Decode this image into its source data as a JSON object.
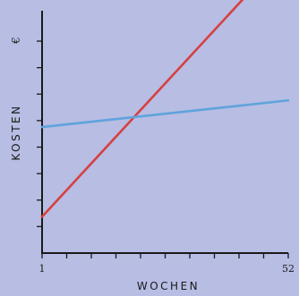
{
  "chart_data": {
    "type": "line",
    "title": "",
    "xlabel": "WOCHEN",
    "ylabel": "KOSTEN",
    "yunit": "€",
    "x_tick_labels": [
      {
        "x": 1,
        "text": "1"
      },
      {
        "x": 52,
        "text": "52"
      }
    ],
    "xlim": [
      1,
      52
    ],
    "ylim": [
      0,
      10
    ],
    "x_minor_ticks": 10,
    "y_minor_ticks": 8,
    "grid": false,
    "colors": {
      "background": "#b7bde3",
      "axis": "#1a1a1a"
    },
    "series": [
      {
        "color": "#d64040",
        "x": [
          1,
          52
        ],
        "y": [
          1.5,
          12.5
        ]
      },
      {
        "color": "#5fa3dc",
        "x": [
          1,
          52
        ],
        "y": [
          5.2,
          6.3
        ]
      }
    ]
  }
}
